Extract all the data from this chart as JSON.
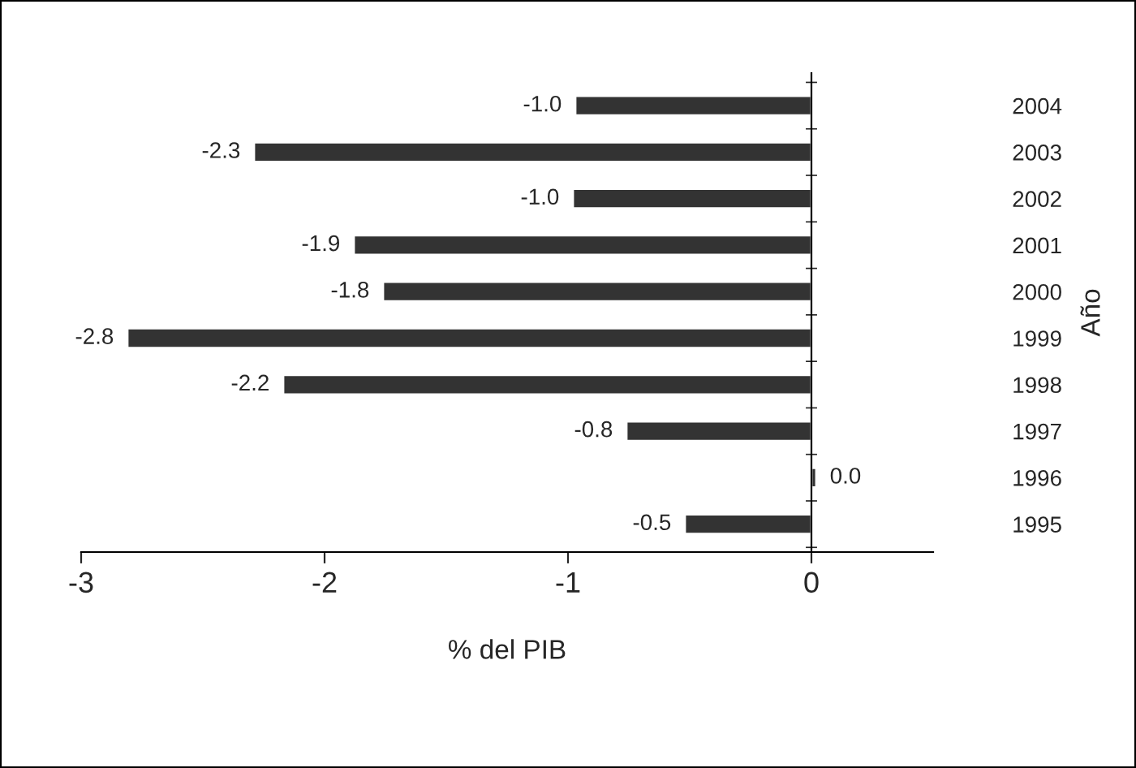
{
  "chart_data": {
    "type": "bar",
    "orientation": "horizontal",
    "xlabel": "% del PIB",
    "ylabel": "Año",
    "categories": [
      "2004",
      "2003",
      "2002",
      "2001",
      "2000",
      "1999",
      "1998",
      "1997",
      "1996",
      "1995"
    ],
    "values": [
      -0.97,
      -2.29,
      -0.98,
      -1.88,
      -1.76,
      -2.81,
      -2.17,
      -0.76,
      0.02,
      -0.52
    ],
    "value_labels": [
      "-1.0",
      "-2.3",
      "-1.0",
      "-1.9",
      "-1.8",
      "-2.8",
      "-2.2",
      "-0.8",
      "0.0",
      "-0.5"
    ],
    "color": "#333333",
    "xlim": [
      -3,
      0.5
    ],
    "xticks": [
      -3,
      -2,
      -1,
      0
    ]
  }
}
